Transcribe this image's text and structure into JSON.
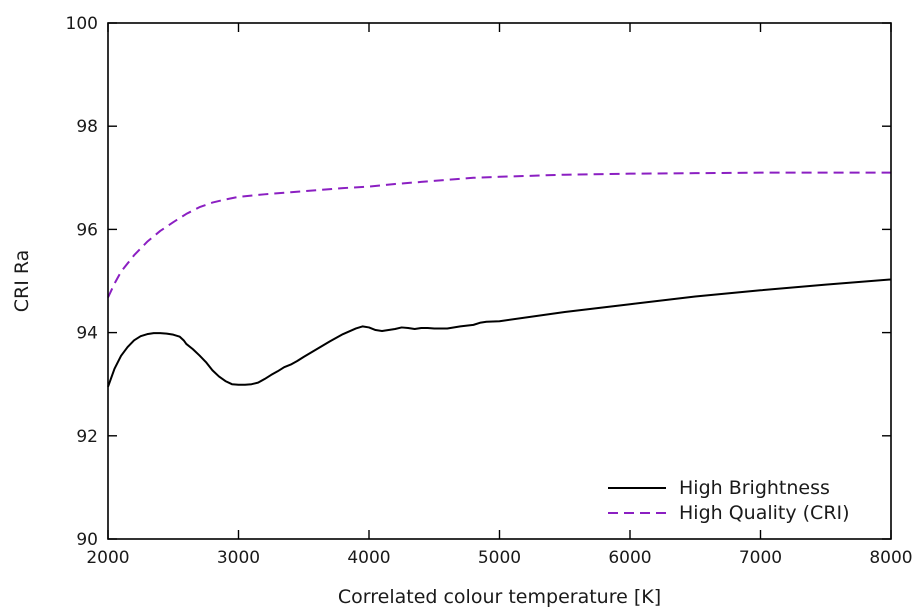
{
  "chart_data": {
    "type": "line",
    "title": "",
    "xlabel": "Correlated colour temperature [K]",
    "ylabel": "CRI Ra",
    "xlim": [
      2000,
      8000
    ],
    "ylim": [
      90,
      100
    ],
    "xticks": [
      2000,
      3000,
      4000,
      5000,
      6000,
      7000,
      8000
    ],
    "yticks": [
      90,
      92,
      94,
      96,
      98,
      100
    ],
    "xtick_labels": [
      "2000",
      "3000",
      "4000",
      "5000",
      "6000",
      "7000",
      "8000"
    ],
    "ytick_labels": [
      "90",
      "92",
      "94",
      "96",
      "98",
      "100"
    ],
    "grid": false,
    "legend_position": "bottom-right",
    "series": [
      {
        "name": "High Brightness",
        "color": "#000000",
        "dash": "solid",
        "x": [
          2000,
          2050,
          2100,
          2150,
          2200,
          2250,
          2300,
          2350,
          2400,
          2450,
          2500,
          2550,
          2580,
          2600,
          2650,
          2700,
          2750,
          2800,
          2850,
          2900,
          2950,
          3000,
          3050,
          3100,
          3150,
          3200,
          3250,
          3300,
          3350,
          3400,
          3450,
          3500,
          3600,
          3700,
          3800,
          3900,
          3950,
          4000,
          4050,
          4100,
          4150,
          4200,
          4250,
          4300,
          4350,
          4400,
          4450,
          4500,
          4600,
          4700,
          4800,
          4850,
          4900,
          5000,
          5500,
          6000,
          6500,
          7000,
          7500,
          8000
        ],
        "y": [
          92.95,
          93.3,
          93.55,
          93.72,
          93.85,
          93.93,
          93.97,
          93.99,
          93.99,
          93.98,
          93.96,
          93.92,
          93.85,
          93.78,
          93.68,
          93.56,
          93.43,
          93.27,
          93.15,
          93.06,
          93.0,
          92.99,
          92.99,
          93.0,
          93.03,
          93.1,
          93.18,
          93.25,
          93.33,
          93.38,
          93.45,
          93.53,
          93.68,
          93.83,
          93.97,
          94.08,
          94.12,
          94.1,
          94.05,
          94.03,
          94.05,
          94.07,
          94.1,
          94.09,
          94.07,
          94.09,
          94.09,
          94.08,
          94.08,
          94.12,
          94.15,
          94.19,
          94.21,
          94.22,
          94.4,
          94.55,
          94.7,
          94.82,
          94.93,
          95.03
        ]
      },
      {
        "name": "High Quality (CRI)",
        "color": "#8b1fc2",
        "dash": "dashed",
        "x": [
          2000,
          2050,
          2100,
          2200,
          2300,
          2400,
          2500,
          2600,
          2700,
          2800,
          2900,
          3000,
          3200,
          3400,
          3600,
          3800,
          4000,
          4200,
          4400,
          4600,
          4800,
          5000,
          5500,
          6000,
          6500,
          7000,
          7500,
          8000
        ],
        "y": [
          94.68,
          94.95,
          95.18,
          95.5,
          95.76,
          95.97,
          96.14,
          96.3,
          96.43,
          96.52,
          96.58,
          96.63,
          96.68,
          96.72,
          96.76,
          96.8,
          96.83,
          96.88,
          96.92,
          96.96,
          97.0,
          97.02,
          97.06,
          97.08,
          97.09,
          97.1,
          97.1,
          97.1
        ]
      }
    ]
  }
}
